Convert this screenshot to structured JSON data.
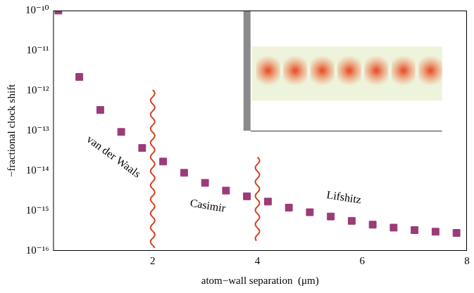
{
  "chart_data": {
    "type": "scatter",
    "x_label": "atom−wall separation  (μm)",
    "y_label": "−fractional clock shift",
    "x": [
      0.2,
      0.6,
      1.0,
      1.4,
      1.8,
      2.2,
      2.6,
      3.0,
      3.4,
      3.8,
      4.2,
      4.6,
      5.0,
      5.4,
      5.8,
      6.2,
      6.6,
      7.0,
      7.4,
      7.8
    ],
    "values": [
      1e-10,
      2.2e-12,
      3.3e-13,
      9.3e-14,
      3.7e-14,
      1.7e-14,
      8.9e-15,
      5e-15,
      3.2e-15,
      2.3e-15,
      1.7e-15,
      1.2e-15,
      9.2e-16,
      7.2e-16,
      5.6e-16,
      4.5e-16,
      3.8e-16,
      3.3e-16,
      3e-16,
      2.8e-16
    ],
    "color": "#9b3b78",
    "marker": "square",
    "log": "y",
    "grid": false,
    "xlim": [
      0.1,
      8
    ],
    "xticks": [
      2,
      4,
      6,
      8
    ],
    "ylim": [
      1e-16,
      1e-10
    ],
    "yticks": [
      {
        "value": 1e-16,
        "label": "10⁻¹⁶"
      },
      {
        "value": 1e-15,
        "label": "10⁻¹⁵"
      },
      {
        "value": 1e-14,
        "label": "10⁻¹⁴"
      },
      {
        "value": 1e-13,
        "label": "10⁻¹³"
      },
      {
        "value": 1e-12,
        "label": "10⁻¹²"
      },
      {
        "value": 1e-11,
        "label": "10⁻¹¹"
      },
      {
        "value": 1e-10,
        "label": "10⁻¹⁰"
      }
    ],
    "annotations": [
      "van der Waals",
      "Casimir",
      "Lifshitz"
    ],
    "boundaries": [
      2,
      4
    ]
  }
}
